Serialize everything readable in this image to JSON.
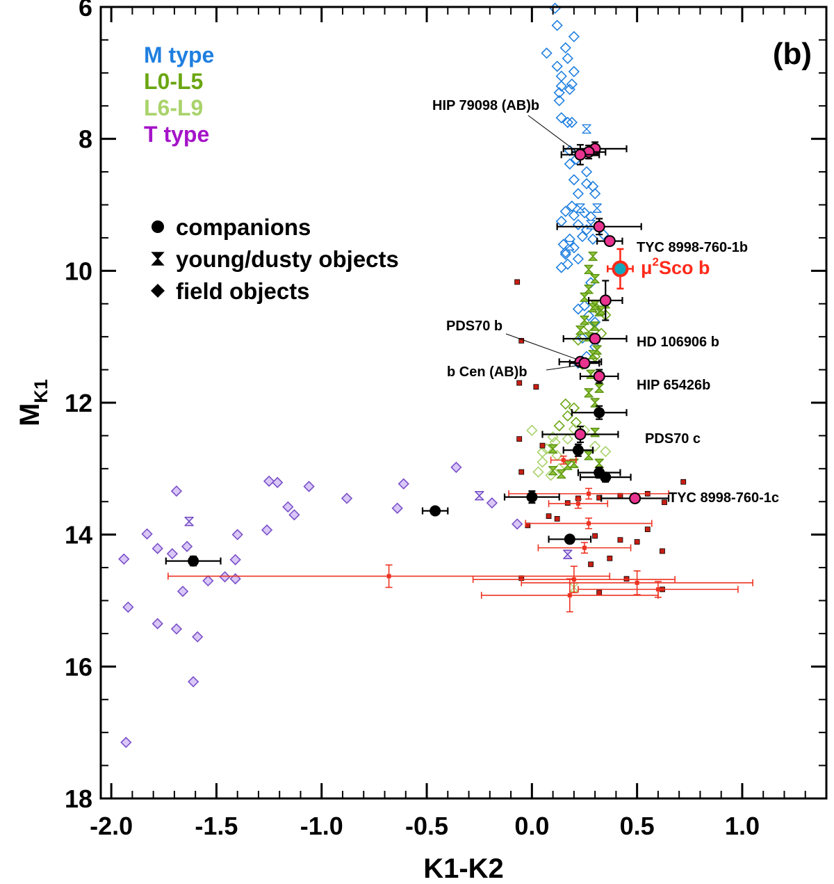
{
  "chart_data": {
    "type": "scatter",
    "panel_label": "(b)",
    "xlabel": "K1-K2",
    "ylabel_main": "M",
    "ylabel_sub": "K1",
    "xlim": [
      -2.05,
      1.4
    ],
    "ylim": [
      18,
      6
    ],
    "x_ticks": [
      "-2.0",
      "-1.5",
      "-1.0",
      "-0.5",
      "0.0",
      "0.5",
      "1.0"
    ],
    "y_ticks": [
      "6",
      "8",
      "10",
      "12",
      "14",
      "16",
      "18"
    ],
    "grid": false,
    "colors": {
      "m_type": "#1f7fe0",
      "l0_l5": "#6aa612",
      "l6_l9": "#a9d36a",
      "t_type": "#a414c8",
      "t_symbol": "#a37fe6",
      "companion_fill": "#e8338f",
      "highlight": "#ff2a1a",
      "highlight_inner": "#14a8bc",
      "red_points": "#ee3322",
      "red_square": "#c81e14"
    },
    "type_legend": [
      {
        "label": "M type",
        "color": "#1f7fe0"
      },
      {
        "label": "L0-L5",
        "color": "#6aa612"
      },
      {
        "label": "L6-L9",
        "color": "#a9d36a"
      },
      {
        "label": "T type",
        "color": "#a414c8"
      }
    ],
    "symbol_legend": [
      {
        "symbol": "circle",
        "label": "companions"
      },
      {
        "symbol": "hourglass",
        "label": "young/dusty objects"
      },
      {
        "symbol": "diamond",
        "label": "field objects"
      }
    ],
    "highlight": {
      "name": "μ²Sco b",
      "label_mu": "μ",
      "label_sup": "2",
      "label_rest": "Sco b",
      "x": 0.42,
      "y": 9.97,
      "xerr": 0.06,
      "yerr": 0.3
    },
    "named_companions": [
      {
        "name": "HIP 79098 (AB)b",
        "x": 0.23,
        "y": 8.24,
        "xerr": 0.09,
        "yerr": 0.15
      },
      {
        "name": "TYC 8998-760-1b",
        "x": 0.37,
        "y": 9.55,
        "xerr": 0.06,
        "yerr": 0.05
      },
      {
        "name": "HD 106906 b",
        "x": 0.3,
        "y": 11.03,
        "xerr": 0.15,
        "yerr": 0.06
      },
      {
        "name": "PDS70 b",
        "x": 0.23,
        "y": 11.38,
        "xerr": 0.1,
        "yerr": 0.06
      },
      {
        "name": "b Cen (AB)b",
        "x": 0.25,
        "y": 11.4,
        "xerr": 0.07,
        "yerr": 0.05
      },
      {
        "name": "HIP 65426b",
        "x": 0.32,
        "y": 11.6,
        "xerr": 0.09,
        "yerr": 0.1
      },
      {
        "name": "PDS70 c",
        "x": 0.23,
        "y": 12.48,
        "xerr": 0.18,
        "yerr": 0.12
      },
      {
        "name": "TYC 8998-760-1c",
        "x": 0.49,
        "y": 13.45,
        "xerr": 0.16,
        "yerr": 0.06
      }
    ],
    "other_companions_pink": [
      {
        "x": 0.3,
        "y": 8.15,
        "xerr": 0.15,
        "yerr": 0.1
      },
      {
        "x": 0.27,
        "y": 8.2,
        "xerr": 0.08,
        "yerr": 0.1
      },
      {
        "x": 0.32,
        "y": 9.33,
        "xerr": 0.2,
        "yerr": 0.12
      },
      {
        "x": 0.35,
        "y": 10.45,
        "xerr": 0.08,
        "yerr": 0.3
      }
    ],
    "companions_black": [
      {
        "x": 0.32,
        "y": 12.15,
        "xerr": 0.13,
        "yerr": 0.1
      },
      {
        "x": 0.22,
        "y": 12.72,
        "xerr": 0.07,
        "yerr": 0.09
      },
      {
        "x": 0.32,
        "y": 13.06,
        "xerr": 0.1,
        "yerr": 0.08
      },
      {
        "x": 0.35,
        "y": 13.13,
        "xerr": 0.12,
        "yerr": 0.07
      },
      {
        "x": 0.0,
        "y": 13.43,
        "xerr": 0.13,
        "yerr": 0.09
      },
      {
        "x": -0.46,
        "y": 13.64,
        "xerr": 0.06,
        "yerr": 0.05
      },
      {
        "x": 0.18,
        "y": 14.07,
        "xerr": 0.1,
        "yerr": 0.05
      },
      {
        "x": -1.61,
        "y": 14.4,
        "xerr": 0.13,
        "yerr": 0.07
      }
    ],
    "red_errorbar_points": [
      {
        "x": 0.15,
        "y": 12.87,
        "xerr": 0.06,
        "yerr": 0.06
      },
      {
        "x": 0.27,
        "y": 13.38,
        "xerr": 0.38,
        "yerr": 0.08
      },
      {
        "x": 0.22,
        "y": 13.53,
        "xerr": 0.14,
        "yerr": 0.07
      },
      {
        "x": 0.27,
        "y": 13.83,
        "xerr": 0.3,
        "yerr": 0.08
      },
      {
        "x": 0.25,
        "y": 14.2,
        "xerr": 0.22,
        "yerr": 0.08
      },
      {
        "x": -0.68,
        "y": 14.63,
        "xerr": 1.05,
        "yerr": 0.17
      },
      {
        "x": 0.2,
        "y": 14.68,
        "xerr": 0.48,
        "yerr": 0.2
      },
      {
        "x": 0.5,
        "y": 14.73,
        "xerr": 0.55,
        "yerr": 0.18
      },
      {
        "x": 0.6,
        "y": 14.83,
        "xerr": 0.38,
        "yerr": 0.12
      },
      {
        "x": 0.18,
        "y": 14.92,
        "xerr": 0.42,
        "yerr": 0.25
      }
    ],
    "red_squares": [
      [
        -0.07,
        10.17
      ],
      [
        -0.05,
        11.06
      ],
      [
        -0.06,
        11.7
      ],
      [
        0.02,
        11.76
      ],
      [
        -0.06,
        12.55
      ],
      [
        0.05,
        12.65
      ],
      [
        -0.05,
        13.05
      ],
      [
        0.72,
        13.2
      ],
      [
        0.22,
        13.45
      ],
      [
        0.32,
        13.44
      ],
      [
        0.42,
        13.41
      ],
      [
        0.55,
        13.38
      ],
      [
        0.63,
        13.51
      ],
      [
        0.17,
        13.52
      ],
      [
        0.08,
        13.72
      ],
      [
        0.12,
        13.76
      ],
      [
        -0.02,
        13.86
      ],
      [
        0.55,
        13.92
      ],
      [
        0.3,
        14.02
      ],
      [
        0.42,
        14.08
      ],
      [
        0.5,
        14.11
      ],
      [
        0.62,
        14.25
      ],
      [
        0.37,
        14.36
      ],
      [
        0.28,
        14.45
      ],
      [
        -0.05,
        14.66
      ],
      [
        0.45,
        14.67
      ],
      [
        0.62,
        14.83
      ],
      [
        0.32,
        14.88
      ]
    ],
    "m_type_diamonds": [
      [
        0.11,
        6.02
      ],
      [
        0.12,
        6.28
      ],
      [
        0.07,
        6.7
      ],
      [
        0.2,
        6.45
      ],
      [
        0.16,
        6.62
      ],
      [
        0.17,
        6.78
      ],
      [
        0.12,
        6.9
      ],
      [
        0.2,
        6.98
      ],
      [
        0.14,
        7.05
      ],
      [
        0.19,
        7.17
      ],
      [
        0.14,
        7.2
      ],
      [
        0.13,
        7.3
      ],
      [
        0.18,
        7.25
      ],
      [
        0.13,
        7.42
      ],
      [
        0.14,
        7.68
      ],
      [
        0.17,
        7.75
      ],
      [
        0.19,
        7.75
      ],
      [
        0.18,
        8.18
      ],
      [
        0.21,
        8.31
      ],
      [
        0.18,
        8.38
      ],
      [
        0.26,
        8.5
      ],
      [
        0.2,
        8.62
      ],
      [
        0.26,
        8.68
      ],
      [
        0.29,
        8.72
      ],
      [
        0.3,
        8.83
      ],
      [
        0.22,
        8.83
      ],
      [
        0.19,
        9.02
      ],
      [
        0.16,
        9.1
      ],
      [
        0.2,
        9.16
      ],
      [
        0.25,
        9.12
      ],
      [
        0.28,
        9.18
      ],
      [
        0.14,
        9.25
      ],
      [
        0.22,
        9.3
      ],
      [
        0.26,
        9.38
      ],
      [
        0.24,
        9.48
      ],
      [
        0.18,
        9.52
      ],
      [
        0.15,
        9.6
      ],
      [
        0.2,
        9.65
      ],
      [
        0.16,
        9.75
      ],
      [
        0.22,
        9.82
      ],
      [
        0.29,
        9.52
      ],
      [
        0.34,
        9.45
      ],
      [
        0.17,
        9.9
      ],
      [
        0.14,
        9.95
      ],
      [
        0.28,
        10.18
      ],
      [
        0.25,
        10.53
      ],
      [
        0.22,
        10.58
      ],
      [
        0.27,
        10.68
      ],
      [
        0.3,
        10.78
      ],
      [
        0.24,
        11.02
      ],
      [
        0.3,
        11.15
      ],
      [
        0.26,
        11.3
      ],
      [
        0.22,
        11.4
      ],
      [
        0.16,
        9.72
      ]
    ],
    "m_type_young": [
      [
        0.26,
        7.85
      ],
      [
        0.23,
        9.05
      ],
      [
        0.31,
        9.05
      ],
      [
        0.28,
        9.3
      ],
      [
        0.18,
        9.62
      ]
    ],
    "l0_l5_young": [
      [
        0.29,
        9.78
      ],
      [
        0.27,
        9.98
      ],
      [
        0.3,
        10.12
      ],
      [
        0.27,
        10.28
      ],
      [
        0.25,
        10.4
      ],
      [
        0.29,
        10.56
      ],
      [
        0.32,
        10.62
      ],
      [
        0.25,
        10.75
      ],
      [
        0.3,
        10.84
      ],
      [
        0.23,
        10.9
      ],
      [
        0.27,
        11.0
      ],
      [
        0.31,
        11.2
      ],
      [
        0.29,
        11.27
      ],
      [
        0.28,
        11.57
      ],
      [
        0.27,
        11.85
      ],
      [
        0.3,
        12.0
      ],
      [
        0.3,
        12.45
      ],
      [
        0.32,
        12.92
      ],
      [
        0.1,
        13.03
      ],
      [
        0.2,
        12.92
      ],
      [
        0.27,
        12.8
      ],
      [
        0.17,
        12.95
      ],
      [
        0.14,
        13.08
      ],
      [
        0.1,
        12.7
      ],
      [
        0.32,
        11.78
      ],
      [
        0.35,
        10.5
      ],
      [
        0.3,
        10.52
      ],
      [
        0.33,
        10.6
      ]
    ],
    "l0_l5_diamonds": [
      [
        0.31,
        10.58
      ],
      [
        0.35,
        10.67
      ],
      [
        0.27,
        10.85
      ],
      [
        0.33,
        10.95
      ],
      [
        0.22,
        11.05
      ],
      [
        0.3,
        11.3
      ],
      [
        0.24,
        11.42
      ],
      [
        0.16,
        12.02
      ],
      [
        0.2,
        12.08
      ],
      [
        0.17,
        12.2
      ],
      [
        0.21,
        12.3
      ],
      [
        0.13,
        12.35
      ]
    ],
    "l6_l9_diamonds": [
      [
        0.0,
        12.42
      ],
      [
        0.1,
        12.52
      ],
      [
        0.2,
        12.4
      ],
      [
        0.25,
        12.42
      ],
      [
        0.07,
        12.7
      ],
      [
        0.12,
        12.8
      ],
      [
        0.05,
        12.9
      ],
      [
        0.13,
        13.0
      ],
      [
        0.03,
        13.05
      ],
      [
        0.11,
        12.6
      ],
      [
        0.3,
        12.66
      ],
      [
        0.35,
        12.74
      ],
      [
        0.05,
        12.75
      ],
      [
        0.17,
        12.55
      ],
      [
        0.09,
        13.1
      ]
    ],
    "l6_l9_young": [
      [
        0.2,
        14.8
      ]
    ],
    "t_type_diamonds": [
      [
        -0.36,
        12.98
      ],
      [
        -0.61,
        13.23
      ],
      [
        -1.06,
        13.27
      ],
      [
        -1.25,
        13.19
      ],
      [
        -1.21,
        13.21
      ],
      [
        -1.69,
        13.34
      ],
      [
        -0.88,
        13.45
      ],
      [
        -0.64,
        13.6
      ],
      [
        -0.19,
        13.52
      ],
      [
        -1.16,
        13.58
      ],
      [
        -1.13,
        13.7
      ],
      [
        -1.26,
        13.93
      ],
      [
        -1.4,
        14.0
      ],
      [
        -1.64,
        14.18
      ],
      [
        -1.83,
        13.99
      ],
      [
        -1.71,
        14.29
      ],
      [
        -1.78,
        14.21
      ],
      [
        -1.94,
        14.37
      ],
      [
        -1.41,
        14.38
      ],
      [
        -1.46,
        14.64
      ],
      [
        -1.41,
        14.67
      ],
      [
        -1.54,
        14.7
      ],
      [
        -1.66,
        14.86
      ],
      [
        -1.92,
        15.1
      ],
      [
        -1.78,
        15.35
      ],
      [
        -1.69,
        15.43
      ],
      [
        -1.59,
        15.55
      ],
      [
        -1.61,
        16.23
      ],
      [
        -1.93,
        17.15
      ],
      [
        -0.07,
        13.84
      ]
    ],
    "t_type_young": [
      [
        -0.25,
        13.41
      ],
      [
        -1.63,
        13.8
      ],
      [
        0.17,
        14.3
      ]
    ]
  }
}
